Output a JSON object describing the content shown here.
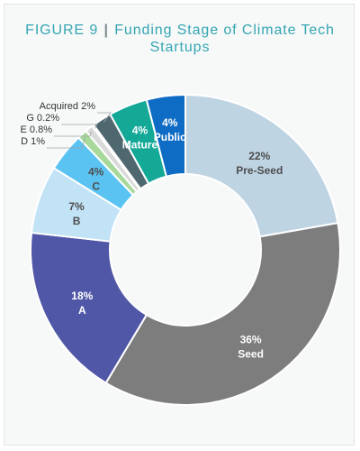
{
  "figure": {
    "number_label": "FIGURE 9",
    "separator": "|",
    "title_line1": "Funding Stage of Climate Tech",
    "title_line2": "Startups"
  },
  "chart_data": {
    "type": "pie",
    "style": "donut",
    "start": "top, clockwise",
    "segments": [
      {
        "name": "Pre-Seed",
        "value": 22,
        "label": "22%",
        "color": "#bed4e3",
        "text_color": "#4d4d4d",
        "label_position": "inside"
      },
      {
        "name": "Seed",
        "value": 36,
        "label": "36%",
        "color": "#7d7d7d",
        "text_color": "#ffffff",
        "label_position": "inside"
      },
      {
        "name": "A",
        "value": 18,
        "label": "18%",
        "color": "#5057a6",
        "text_color": "#ffffff",
        "label_position": "inside"
      },
      {
        "name": "B",
        "value": 7,
        "label": "7%",
        "color": "#c2e2f6",
        "text_color": "#4d4d4d",
        "label_position": "inside"
      },
      {
        "name": "C",
        "value": 4,
        "label": "4%",
        "color": "#5bc3f2",
        "text_color": "#4d4d4d",
        "label_position": "inside"
      },
      {
        "name": "D",
        "value": 1,
        "label": "1%",
        "color": "#a8d99b",
        "text_color": "#333333",
        "label_position": "outside"
      },
      {
        "name": "E",
        "value": 0.8,
        "label": "0.8%",
        "color": "#d9d9d9",
        "text_color": "#333333",
        "label_position": "outside"
      },
      {
        "name": "G",
        "value": 0.2,
        "label": "0.2%",
        "color": "#ffe600",
        "text_color": "#333333",
        "label_position": "outside"
      },
      {
        "name": "Acquired",
        "value": 2,
        "label": "2%",
        "color": "#4f6870",
        "text_color": "#333333",
        "label_position": "outside"
      },
      {
        "name": "Mature",
        "value": 4,
        "label": "4%",
        "color": "#14a997",
        "text_color": "#ffffff",
        "label_position": "inside"
      },
      {
        "name": "Public",
        "value": 4,
        "label": "4%",
        "color": "#0f6cc4",
        "text_color": "#ffffff",
        "label_position": "inside"
      }
    ]
  }
}
